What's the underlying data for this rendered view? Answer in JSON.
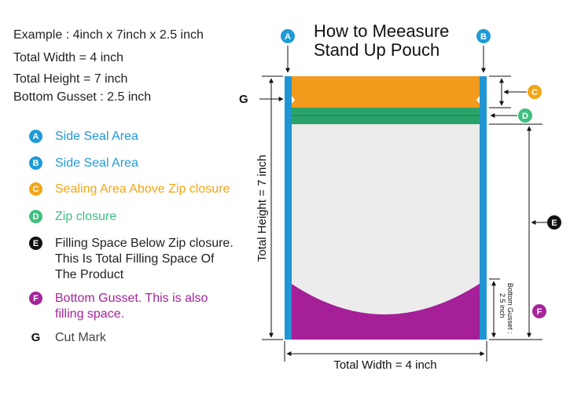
{
  "info": {
    "example": "Example : 4inch x 7inch x 2.5 inch",
    "total_width": "Total Width = 4 inch",
    "total_height": "Total Height = 7 inch",
    "bottom_gusset": "Bottom Gusset : 2.5 inch"
  },
  "legend": [
    {
      "letter": "A",
      "color": "#1f9ad6",
      "lines": [
        "Side Seal Area"
      ]
    },
    {
      "letter": "B",
      "color": "#1f9ad6",
      "lines": [
        "Side Seal Area"
      ]
    },
    {
      "letter": "C",
      "color": "#f2a516",
      "lines": [
        "Sealing Area Above Zip closure"
      ]
    },
    {
      "letter": "D",
      "color": "#3fbf80",
      "lines": [
        "Zip closure"
      ]
    },
    {
      "letter": "E",
      "color": "#111111",
      "lines": [
        "Filling Space Below Zip closure.",
        "This Is Total Filling Space Of",
        "The Product"
      ]
    },
    {
      "letter": "F",
      "color": "#a5249b",
      "lines": [
        "Bottom Gusset. This is also",
        "filling space."
      ]
    },
    {
      "letter": "G",
      "color": "#444444",
      "lines": [
        "Cut Mark"
      ]
    }
  ],
  "title": {
    "line1": "How to Meeasure",
    "line2": "Stand Up Pouch"
  },
  "diagram": {
    "label_a": "A",
    "label_b": "B",
    "label_c": "C",
    "label_d": "D",
    "label_e": "E",
    "label_f": "F",
    "label_g": "G",
    "total_height_label": "Total Height = 7 inch",
    "total_width_label": "Total Width = 4 inch",
    "bottom_gusset_label_1": "Bottom Gusset :",
    "bottom_gusset_label_2": "2.5 inch"
  },
  "colors": {
    "side_seal": "#1f95d3",
    "top_seal": "#f29a1b",
    "zip": "#2aa36b",
    "body": "#ececec",
    "gusset": "#a41f98",
    "text_blue": "#1f9ad6",
    "text_orange": "#f2a516",
    "text_green": "#3fbf80",
    "text_purple": "#a5249b",
    "text_gray": "#444444"
  }
}
